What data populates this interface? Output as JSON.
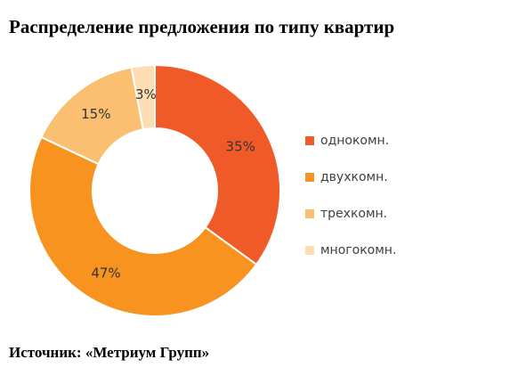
{
  "title": "Распределение предложения по типу квартир",
  "source": "Источник: «Метриум Групп»",
  "chart_data": {
    "type": "pie",
    "donut": true,
    "categories": [
      "однокомн.",
      "двухкомн.",
      "трехкомн.",
      "многокомн."
    ],
    "values": [
      35,
      47,
      15,
      3
    ],
    "labels": [
      "35%",
      "47%",
      "15%",
      "3%"
    ],
    "colors": [
      "#F05A28",
      "#F7931E",
      "#FBBF72",
      "#FDDDB4"
    ],
    "legend_position": "right"
  }
}
